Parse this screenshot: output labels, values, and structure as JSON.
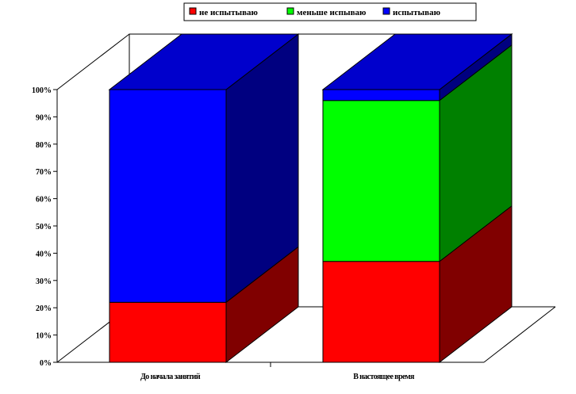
{
  "chart_data": {
    "type": "bar",
    "stacked": true,
    "three_d": true,
    "categories": [
      "До начала занятий",
      "В настоящее время"
    ],
    "series": [
      {
        "name": "не испытываю",
        "values": [
          22,
          37
        ],
        "color": "#FF0000",
        "side_color": "#800000"
      },
      {
        "name": "меньше испываю",
        "values": [
          0,
          59
        ],
        "color": "#00FF00",
        "side_color": "#008000"
      },
      {
        "name": "испытываю",
        "values": [
          78,
          4
        ],
        "color": "#0000FF",
        "side_color": "#000080",
        "top_color": "#0000CC"
      }
    ],
    "ylim": [
      0,
      100
    ],
    "y_ticks": [
      "0%",
      "10%",
      "20%",
      "30%",
      "40%",
      "50%",
      "60%",
      "70%",
      "80%",
      "90%",
      "100%"
    ],
    "legend_position": "top",
    "grid": false
  }
}
